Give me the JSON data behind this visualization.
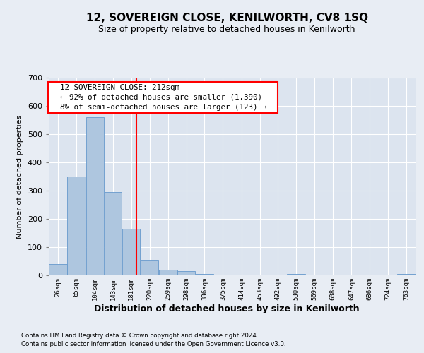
{
  "title": "12, SOVEREIGN CLOSE, KENILWORTH, CV8 1SQ",
  "subtitle": "Size of property relative to detached houses in Kenilworth",
  "xlabel": "Distribution of detached houses by size in Kenilworth",
  "ylabel": "Number of detached properties",
  "footer_line1": "Contains HM Land Registry data © Crown copyright and database right 2024.",
  "footer_line2": "Contains public sector information licensed under the Open Government Licence v3.0.",
  "annotation_line1": "12 SOVEREIGN CLOSE: 212sqm",
  "annotation_line2": "← 92% of detached houses are smaller (1,390)",
  "annotation_line3": "8% of semi-detached houses are larger (123) →",
  "property_size": 212,
  "red_line_x": 212,
  "bar_color": "#aec6df",
  "bar_edge_color": "#6699cc",
  "background_color": "#e8edf4",
  "plot_bg_color": "#dce4ef",
  "grid_color": "#ffffff",
  "bin_edges": [
    26,
    65,
    104,
    143,
    181,
    220,
    259,
    298,
    336,
    375,
    414,
    453,
    492,
    530,
    569,
    608,
    647,
    686,
    724,
    763,
    802
  ],
  "bar_heights": [
    40,
    350,
    560,
    295,
    165,
    55,
    20,
    15,
    5,
    0,
    0,
    0,
    0,
    5,
    0,
    0,
    0,
    0,
    0,
    5
  ],
  "ylim": [
    0,
    700
  ],
  "yticks": [
    0,
    100,
    200,
    300,
    400,
    500,
    600,
    700
  ]
}
